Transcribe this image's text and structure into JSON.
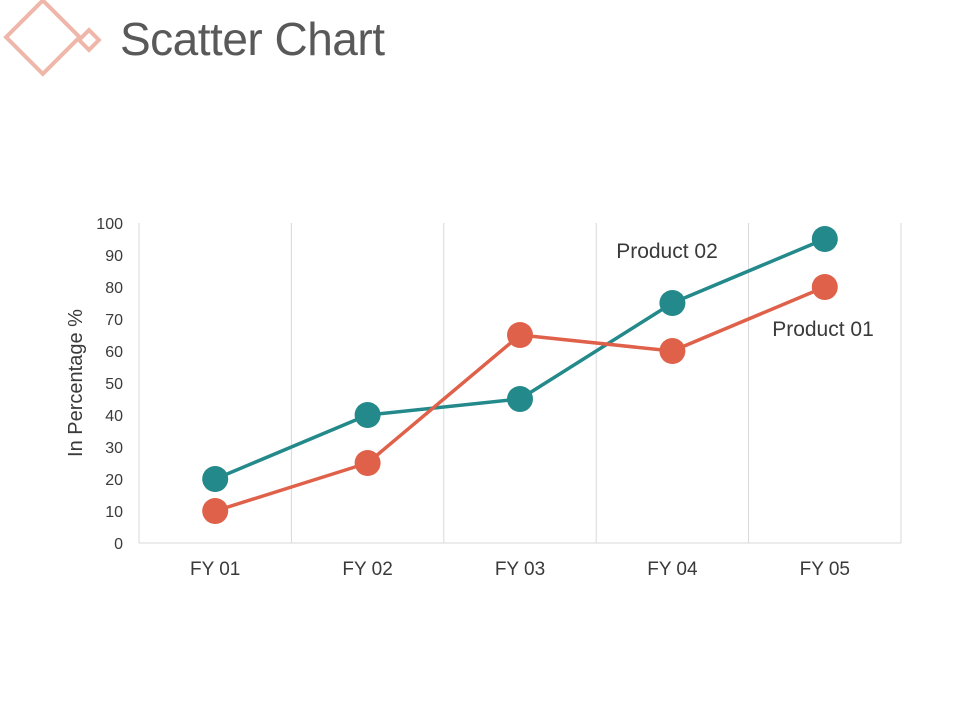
{
  "header": {
    "title": "Scatter Chart",
    "logo_icon": "diamond-outline-icon",
    "logo_color": "#efb7a9"
  },
  "chart_data": {
    "type": "line",
    "title": "Scatter Chart",
    "categories": [
      "FY 01",
      "FY 02",
      "FY 03",
      "FY 04",
      "FY 05"
    ],
    "xlabel": "",
    "ylabel": "In Percentage %",
    "ylim": [
      0,
      100
    ],
    "yticks": [
      0,
      10,
      20,
      30,
      40,
      50,
      60,
      70,
      80,
      90,
      100
    ],
    "grid": {
      "vertical": true,
      "horizontal": false
    },
    "legend": "none",
    "series": [
      {
        "name": "Product 01",
        "values": [
          10,
          25,
          65,
          60,
          80
        ],
        "color": "#e0614a"
      },
      {
        "name": "Product 02",
        "values": [
          20,
          40,
          45,
          75,
          95
        ],
        "color": "#23898a"
      }
    ]
  }
}
